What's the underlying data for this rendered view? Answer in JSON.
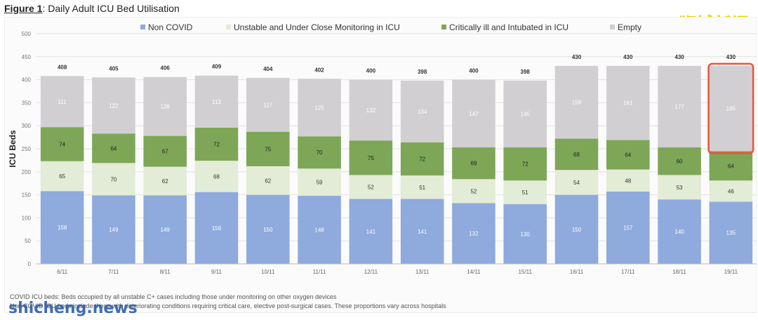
{
  "figure": {
    "label": "Figure 1",
    "title": ": Daily Adult ICU Bed Utilisation"
  },
  "watermarks": {
    "top_right": "狮城新闻",
    "bottom_left": "shicheng.news"
  },
  "footnotes": [
    "COVID ICU beds: Beds occupied by all unstable C+ cases including those under monitoring on other oxygen devices",
    "Non COVID ICU beds include those with deteriorating conditions requiring critical care, elective post-surgical cases. These proportions vary across hospitals"
  ],
  "colors": {
    "non_covid": "#8faadc",
    "unstable": "#e3ecd6",
    "critical": "#7ea657",
    "empty": "#d2cfd3",
    "highlight": "#e8543a"
  },
  "chart_data": {
    "type": "bar",
    "stacked": true,
    "ylabel": "ICU Beds",
    "ylim": [
      0,
      500
    ],
    "yticks": [
      0,
      50,
      100,
      150,
      200,
      250,
      300,
      350,
      400,
      450,
      500
    ],
    "legend_position": "top",
    "categories": [
      "6/11",
      "7/11",
      "8/11",
      "9/11",
      "10/11",
      "11/11",
      "12/11",
      "13/11",
      "14/11",
      "15/11",
      "16/11",
      "17/11",
      "18/11",
      "19/11"
    ],
    "totals": [
      408,
      405,
      406,
      409,
      404,
      402,
      400,
      398,
      400,
      398,
      430,
      430,
      430,
      430
    ],
    "series": [
      {
        "name": "Non COVID",
        "values": [
          158,
          149,
          149,
          156,
          150,
          148,
          141,
          141,
          132,
          130,
          150,
          157,
          140,
          135
        ]
      },
      {
        "name": "Unstable and Under Close Monitoring in ICU",
        "values": [
          65,
          70,
          62,
          68,
          62,
          59,
          52,
          51,
          52,
          51,
          54,
          48,
          53,
          46
        ]
      },
      {
        "name": "Critically ill and Intubated in ICU",
        "values": [
          74,
          64,
          67,
          72,
          75,
          70,
          75,
          72,
          69,
          72,
          68,
          64,
          60,
          64
        ]
      },
      {
        "name": "Empty",
        "values": [
          111,
          122,
          128,
          113,
          117,
          125,
          132,
          134,
          147,
          145,
          158,
          161,
          177,
          185
        ]
      }
    ],
    "highlight_index": 13
  }
}
